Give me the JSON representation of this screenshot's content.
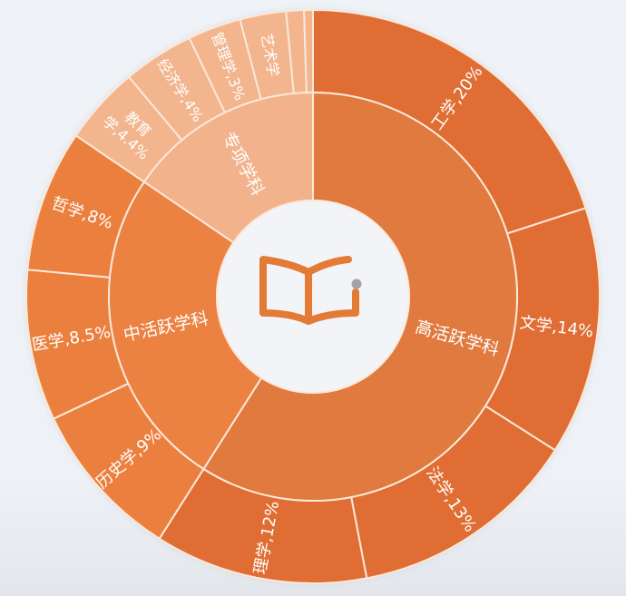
{
  "chart_data": {
    "type": "sunburst",
    "title": "",
    "inner": [
      {
        "name": "高活跃学科",
        "color": "#e07a3e"
      },
      {
        "name": "中活跃学科",
        "color": "#eb8242"
      },
      {
        "name": "专项学科",
        "color": "#f2b38c"
      }
    ],
    "outer": [
      {
        "name": "工学",
        "value": 20,
        "label": "工学,20%",
        "group": "高活跃学科",
        "color": "#e06e34"
      },
      {
        "name": "文学",
        "value": 14,
        "label": "文学,14%",
        "group": "高活跃学科",
        "color": "#e06e34"
      },
      {
        "name": "法学",
        "value": 13,
        "label": "法学,13%",
        "group": "高活跃学科",
        "color": "#e06e34"
      },
      {
        "name": "理学",
        "value": 12,
        "label": "理学,12%",
        "group": "高活跃学科",
        "color": "#e06e34"
      },
      {
        "name": "历史学",
        "value": 9,
        "label": "历史学,9%",
        "group": "中活跃学科",
        "color": "#eb803e"
      },
      {
        "name": "医学",
        "value": 8.5,
        "label": "医学,8.5%",
        "group": "中活跃学科",
        "color": "#eb803e"
      },
      {
        "name": "哲学",
        "value": 8,
        "label": "哲学,8%",
        "group": "中活跃学科",
        "color": "#eb803e"
      },
      {
        "name": "教育学",
        "value": 4.4,
        "label": "教育学,4.4%",
        "group": "专项学科",
        "color": "#f2b58e"
      },
      {
        "name": "经济学",
        "value": 4,
        "label": "经济学,4%",
        "group": "专项学科",
        "color": "#f2b58e"
      },
      {
        "name": "管理学",
        "value": 3,
        "label": "管理学,3%",
        "group": "专项学科",
        "color": "#f2b58e"
      },
      {
        "name": "艺术学",
        "value": 2.6,
        "label": "艺术学",
        "group": "专项学科",
        "color": "#f2b58e"
      },
      {
        "name": "",
        "value": 1,
        "label": "",
        "group": "专项学科",
        "color": "#f2b58e"
      },
      {
        "name": "",
        "value": 0.5,
        "label": "",
        "group": "专项学科",
        "color": "#f2b58e"
      }
    ],
    "center_icon": "book-icon",
    "colors": {
      "ring_stroke": "#fbe8da",
      "center_bg": "#f2f4f8",
      "icon": "#e37b37",
      "icon_dot": "#a3a3a3"
    }
  }
}
